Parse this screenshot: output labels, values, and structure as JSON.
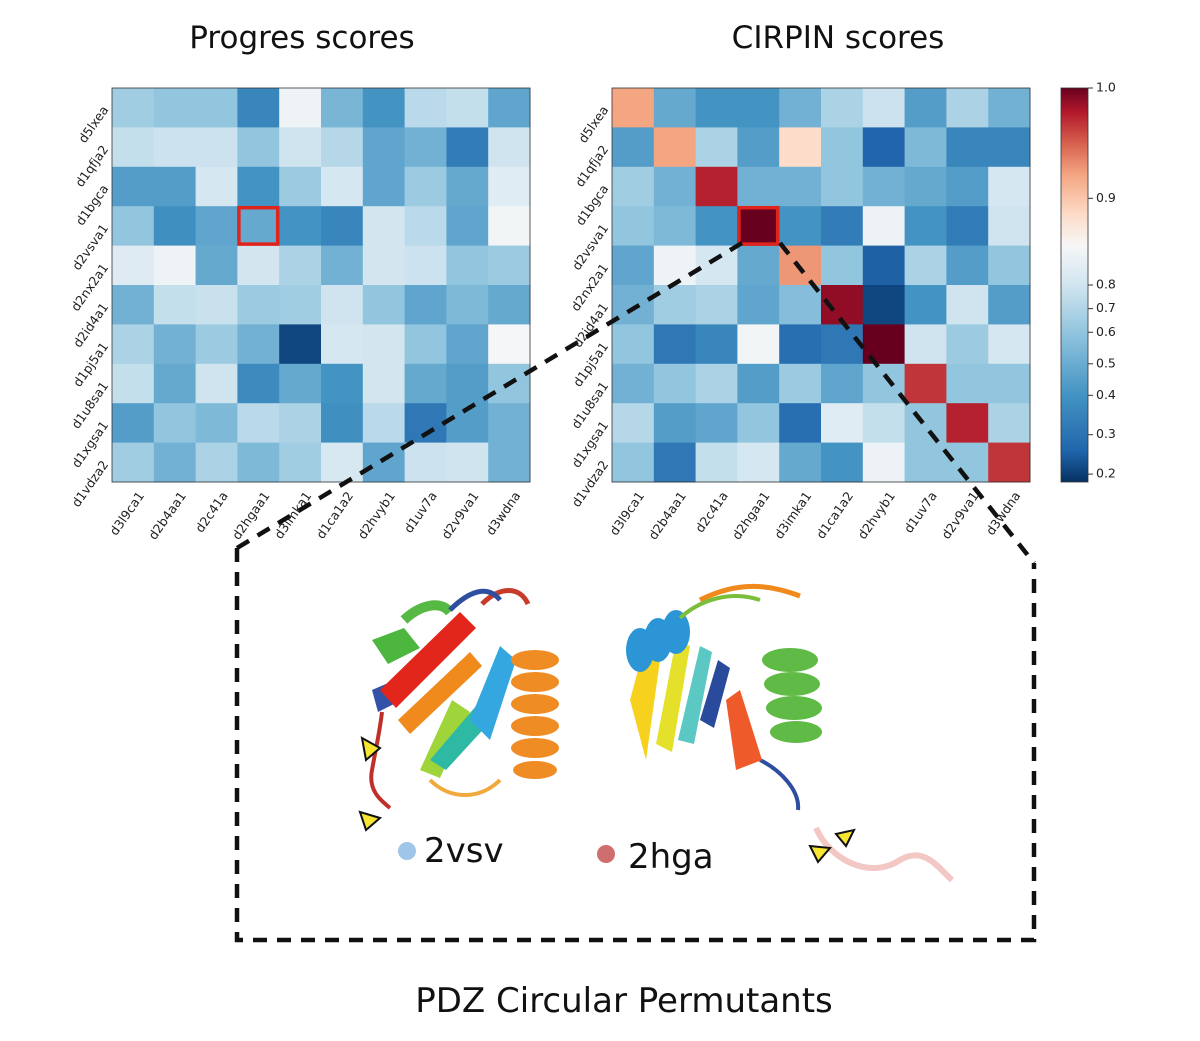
{
  "figure_title": "PDZ Circular Permutants",
  "colors": {
    "highlight": "#e0241b",
    "label_2vsv": "#9fc5e8",
    "label_2hga": "#cf6e6e",
    "marker_fill": "#f7e531"
  },
  "chart_data": [
    {
      "type": "heatmap",
      "title": "Progres scores",
      "row_labels": [
        "d5lxea",
        "d1qfja2",
        "d1bgca",
        "d2vsva1",
        "d2nx2a1",
        "d2id4a1",
        "d1pj5a1",
        "d1u8sa1",
        "d1xgsa1",
        "d1vdza2"
      ],
      "col_labels": [
        "d3l9ca1",
        "d2b4aa1",
        "d2c41a",
        "d2hgaa1",
        "d3imka1",
        "d1ca1a2",
        "d2hvyb1",
        "d1uv7a",
        "d2v9va1",
        "d3wdna"
      ],
      "values": [
        [
          0.53,
          0.5,
          0.5,
          0.35,
          0.76,
          0.46,
          0.38,
          0.58,
          0.6,
          0.42
        ],
        [
          0.6,
          0.62,
          0.62,
          0.5,
          0.63,
          0.57,
          0.42,
          0.45,
          0.33,
          0.63
        ],
        [
          0.4,
          0.4,
          0.65,
          0.38,
          0.52,
          0.65,
          0.42,
          0.52,
          0.43,
          0.7
        ],
        [
          0.5,
          0.37,
          0.42,
          0.43,
          0.38,
          0.35,
          0.64,
          0.58,
          0.42,
          0.78
        ],
        [
          0.69,
          0.76,
          0.43,
          0.64,
          0.55,
          0.45,
          0.64,
          0.62,
          0.5,
          0.52
        ],
        [
          0.45,
          0.6,
          0.61,
          0.52,
          0.53,
          0.63,
          0.5,
          0.42,
          0.47,
          0.43
        ],
        [
          0.55,
          0.45,
          0.52,
          0.45,
          0.22,
          0.65,
          0.64,
          0.5,
          0.42,
          0.79
        ],
        [
          0.6,
          0.43,
          0.63,
          0.36,
          0.43,
          0.38,
          0.64,
          0.43,
          0.4,
          0.5
        ],
        [
          0.4,
          0.5,
          0.47,
          0.58,
          0.55,
          0.37,
          0.58,
          0.32,
          0.4,
          0.45
        ],
        [
          0.53,
          0.45,
          0.55,
          0.47,
          0.53,
          0.66,
          0.42,
          0.62,
          0.63,
          0.45
        ]
      ],
      "highlight_cell": {
        "row": "d2vsva1",
        "col": "d2hgaa1"
      },
      "colormap": "RdBu_r"
    },
    {
      "type": "heatmap",
      "title": "CIRPIN scores",
      "row_labels": [
        "d5lxea",
        "d1qfja2",
        "d1bgca",
        "d2vsva1",
        "d2nx2a1",
        "d2id4a1",
        "d1pj5a1",
        "d1u8sa1",
        "d1xgsa1",
        "d1vdza2"
      ],
      "col_labels": [
        "d3l9ca1",
        "d2b4aa1",
        "d2c41a",
        "d2hgaa1",
        "d3imka1",
        "d1ca1a2",
        "d2hvyb1",
        "d1uv7a",
        "d2v9va1",
        "d3wdna"
      ],
      "values": [
        [
          0.89,
          0.43,
          0.38,
          0.38,
          0.45,
          0.55,
          0.62,
          0.4,
          0.55,
          0.45
        ],
        [
          0.4,
          0.89,
          0.55,
          0.4,
          0.84,
          0.5,
          0.28,
          0.47,
          0.35,
          0.35
        ],
        [
          0.53,
          0.45,
          0.96,
          0.45,
          0.45,
          0.5,
          0.45,
          0.43,
          0.4,
          0.65
        ],
        [
          0.5,
          0.47,
          0.38,
          1.0,
          0.38,
          0.33,
          0.75,
          0.38,
          0.33,
          0.63
        ],
        [
          0.42,
          0.76,
          0.65,
          0.43,
          0.9,
          0.5,
          0.27,
          0.55,
          0.4,
          0.5
        ],
        [
          0.45,
          0.53,
          0.55,
          0.42,
          0.48,
          0.98,
          0.22,
          0.38,
          0.63,
          0.4
        ],
        [
          0.5,
          0.32,
          0.35,
          0.78,
          0.3,
          0.32,
          1.0,
          0.63,
          0.52,
          0.65
        ],
        [
          0.45,
          0.5,
          0.55,
          0.4,
          0.52,
          0.42,
          0.5,
          0.95,
          0.5,
          0.5
        ],
        [
          0.57,
          0.4,
          0.42,
          0.5,
          0.3,
          0.7,
          0.6,
          0.5,
          0.96,
          0.55
        ],
        [
          0.5,
          0.32,
          0.6,
          0.65,
          0.43,
          0.38,
          0.75,
          0.5,
          0.5,
          0.95
        ]
      ],
      "highlight_cell": {
        "row": "d2vsva1",
        "col": "d2hgaa1"
      },
      "colormap": "RdBu_r",
      "colorbar": {
        "ticks": [
          "1.0",
          "0.9",
          "0.8",
          "0.7",
          "0.6",
          "0.5",
          "0.4",
          "0.3",
          "0.2"
        ],
        "range": [
          0.18,
          1.0
        ]
      }
    }
  ],
  "inset": {
    "label_2vsv": "2vsv",
    "label_2hga": "2hga"
  }
}
